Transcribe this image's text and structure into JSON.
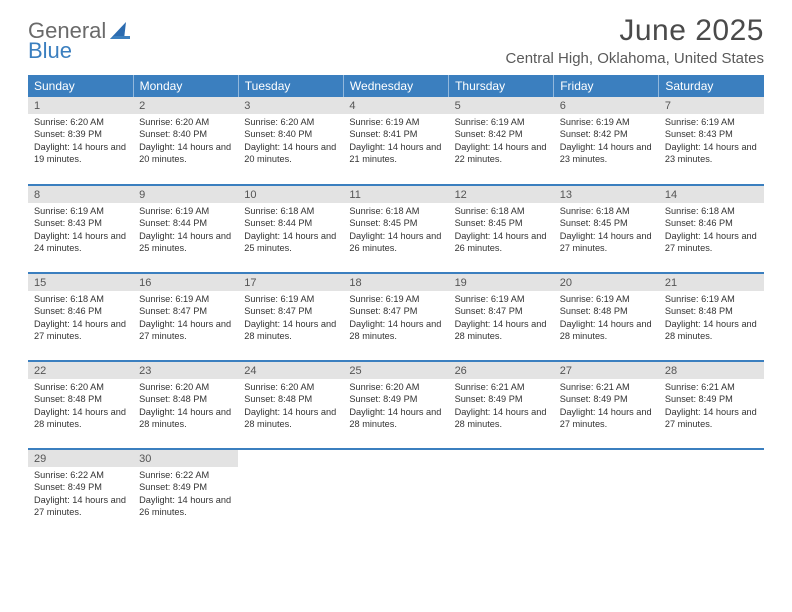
{
  "logo": {
    "top": "General",
    "bottom": "Blue"
  },
  "title": "June 2025",
  "location": "Central High, Oklahoma, United States",
  "colors": {
    "header_bg": "#3b7fbf",
    "daynum_bg": "#e3e3e3",
    "row_border": "#3b7fbf",
    "logo_accent": "#2b6bb0"
  },
  "weekdays": [
    "Sunday",
    "Monday",
    "Tuesday",
    "Wednesday",
    "Thursday",
    "Friday",
    "Saturday"
  ],
  "days": [
    {
      "n": 1,
      "sr": "6:20 AM",
      "ss": "8:39 PM",
      "dl": "14 hours and 19 minutes"
    },
    {
      "n": 2,
      "sr": "6:20 AM",
      "ss": "8:40 PM",
      "dl": "14 hours and 20 minutes"
    },
    {
      "n": 3,
      "sr": "6:20 AM",
      "ss": "8:40 PM",
      "dl": "14 hours and 20 minutes"
    },
    {
      "n": 4,
      "sr": "6:19 AM",
      "ss": "8:41 PM",
      "dl": "14 hours and 21 minutes"
    },
    {
      "n": 5,
      "sr": "6:19 AM",
      "ss": "8:42 PM",
      "dl": "14 hours and 22 minutes"
    },
    {
      "n": 6,
      "sr": "6:19 AM",
      "ss": "8:42 PM",
      "dl": "14 hours and 23 minutes"
    },
    {
      "n": 7,
      "sr": "6:19 AM",
      "ss": "8:43 PM",
      "dl": "14 hours and 23 minutes"
    },
    {
      "n": 8,
      "sr": "6:19 AM",
      "ss": "8:43 PM",
      "dl": "14 hours and 24 minutes"
    },
    {
      "n": 9,
      "sr": "6:19 AM",
      "ss": "8:44 PM",
      "dl": "14 hours and 25 minutes"
    },
    {
      "n": 10,
      "sr": "6:18 AM",
      "ss": "8:44 PM",
      "dl": "14 hours and 25 minutes"
    },
    {
      "n": 11,
      "sr": "6:18 AM",
      "ss": "8:45 PM",
      "dl": "14 hours and 26 minutes"
    },
    {
      "n": 12,
      "sr": "6:18 AM",
      "ss": "8:45 PM",
      "dl": "14 hours and 26 minutes"
    },
    {
      "n": 13,
      "sr": "6:18 AM",
      "ss": "8:45 PM",
      "dl": "14 hours and 27 minutes"
    },
    {
      "n": 14,
      "sr": "6:18 AM",
      "ss": "8:46 PM",
      "dl": "14 hours and 27 minutes"
    },
    {
      "n": 15,
      "sr": "6:18 AM",
      "ss": "8:46 PM",
      "dl": "14 hours and 27 minutes"
    },
    {
      "n": 16,
      "sr": "6:19 AM",
      "ss": "8:47 PM",
      "dl": "14 hours and 27 minutes"
    },
    {
      "n": 17,
      "sr": "6:19 AM",
      "ss": "8:47 PM",
      "dl": "14 hours and 28 minutes"
    },
    {
      "n": 18,
      "sr": "6:19 AM",
      "ss": "8:47 PM",
      "dl": "14 hours and 28 minutes"
    },
    {
      "n": 19,
      "sr": "6:19 AM",
      "ss": "8:47 PM",
      "dl": "14 hours and 28 minutes"
    },
    {
      "n": 20,
      "sr": "6:19 AM",
      "ss": "8:48 PM",
      "dl": "14 hours and 28 minutes"
    },
    {
      "n": 21,
      "sr": "6:19 AM",
      "ss": "8:48 PM",
      "dl": "14 hours and 28 minutes"
    },
    {
      "n": 22,
      "sr": "6:20 AM",
      "ss": "8:48 PM",
      "dl": "14 hours and 28 minutes"
    },
    {
      "n": 23,
      "sr": "6:20 AM",
      "ss": "8:48 PM",
      "dl": "14 hours and 28 minutes"
    },
    {
      "n": 24,
      "sr": "6:20 AM",
      "ss": "8:48 PM",
      "dl": "14 hours and 28 minutes"
    },
    {
      "n": 25,
      "sr": "6:20 AM",
      "ss": "8:49 PM",
      "dl": "14 hours and 28 minutes"
    },
    {
      "n": 26,
      "sr": "6:21 AM",
      "ss": "8:49 PM",
      "dl": "14 hours and 28 minutes"
    },
    {
      "n": 27,
      "sr": "6:21 AM",
      "ss": "8:49 PM",
      "dl": "14 hours and 27 minutes"
    },
    {
      "n": 28,
      "sr": "6:21 AM",
      "ss": "8:49 PM",
      "dl": "14 hours and 27 minutes"
    },
    {
      "n": 29,
      "sr": "6:22 AM",
      "ss": "8:49 PM",
      "dl": "14 hours and 27 minutes"
    },
    {
      "n": 30,
      "sr": "6:22 AM",
      "ss": "8:49 PM",
      "dl": "14 hours and 26 minutes"
    }
  ],
  "labels": {
    "sunrise": "Sunrise:",
    "sunset": "Sunset:",
    "daylight": "Daylight:"
  }
}
